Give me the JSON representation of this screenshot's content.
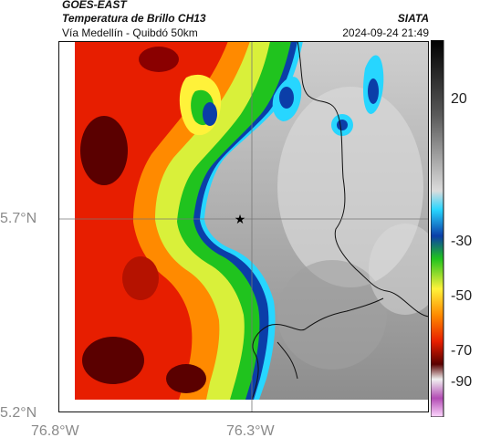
{
  "header": {
    "satellite": "GOES-EAST",
    "product": "Temperatura de Brillo CH13",
    "route": "Vía Medellín - Quibdó 50km",
    "agency": "SIATA",
    "timestamp": "2024-09-24 21:49"
  },
  "map": {
    "lat_labels": [
      "5.7°N",
      "5.2°N"
    ],
    "lon_labels": [
      "76.8°W",
      "76.3°W"
    ],
    "marker_icon": "star-icon"
  },
  "colorbar": {
    "ticks": [
      "20",
      "-30",
      "-50",
      "-70",
      "-90"
    ],
    "colors": {
      "warm": "#ffffff",
      "cyan": "#27d6ff",
      "blue": "#0b3ea8",
      "green": "#20c31e",
      "yellow": "#fff23a",
      "orange": "#ff8a00",
      "red": "#e71e00",
      "dark_red": "#5a0000",
      "magenta": "#b24cb4"
    }
  }
}
